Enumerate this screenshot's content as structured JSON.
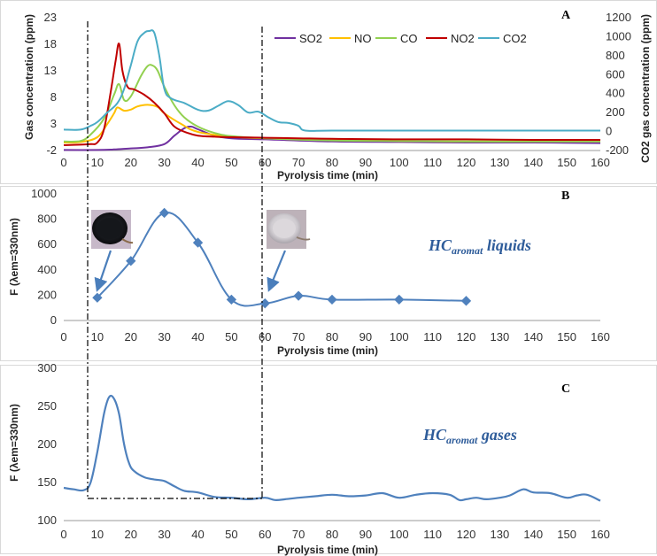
{
  "chart_data": [
    {
      "panel": "A",
      "type": "line",
      "xlabel": "Pyrolysis time (min)",
      "ylabel": "Gas concentration (ppm)",
      "y2label": "CO2 gas concentration (ppm)",
      "xlim": [
        0,
        160
      ],
      "ylim": [
        -2,
        23
      ],
      "y2lim": [
        -200,
        1200
      ],
      "xticks": [
        0,
        10,
        20,
        30,
        40,
        50,
        60,
        70,
        80,
        90,
        100,
        110,
        120,
        130,
        140,
        150,
        160
      ],
      "yticks": [
        -2,
        3,
        8,
        13,
        18,
        23
      ],
      "y2ticks": [
        -200,
        0,
        200,
        400,
        600,
        800,
        1000,
        1200
      ],
      "legend_position": "top",
      "series": [
        {
          "name": "SO2",
          "color": "#7030a0",
          "axis": "left",
          "x": [
            0,
            10,
            15,
            20,
            25,
            30,
            33,
            36,
            38,
            40,
            45,
            50,
            60,
            80,
            100,
            120,
            140,
            160
          ],
          "y": [
            -1.9,
            -1.9,
            -1.8,
            -1.6,
            -1.4,
            -0.8,
            0.8,
            2.2,
            2.5,
            2.0,
            0.8,
            0.3,
            0.1,
            -0.3,
            -0.4,
            -0.5,
            -0.5,
            -0.6
          ]
        },
        {
          "name": "NO",
          "color": "#ffc000",
          "axis": "left",
          "x": [
            0,
            5,
            10,
            13,
            15,
            16,
            18,
            20,
            22,
            25,
            28,
            30,
            35,
            40,
            50,
            60,
            70,
            80,
            100,
            120,
            140,
            160
          ],
          "y": [
            -0.5,
            -0.4,
            0.5,
            3.0,
            5.0,
            6.1,
            5.5,
            5.7,
            6.3,
            6.6,
            6.2,
            5.0,
            3.0,
            1.5,
            0.6,
            0.3,
            0.1,
            0,
            -0.2,
            -0.3,
            -0.3,
            -0.3
          ]
        },
        {
          "name": "CO",
          "color": "#92d050",
          "axis": "left",
          "x": [
            0,
            5,
            8,
            12,
            15,
            16.5,
            18,
            20,
            23,
            25,
            26.5,
            28,
            30,
            33,
            36,
            40,
            45,
            50,
            60,
            80,
            100,
            120,
            140,
            160
          ],
          "y": [
            -0.3,
            -0.2,
            1.0,
            4.0,
            8.5,
            10.5,
            7.5,
            8.2,
            12.0,
            13.9,
            14.0,
            13.0,
            10.0,
            6.5,
            4.2,
            2.5,
            1.3,
            0.7,
            0.3,
            -0.1,
            -0.2,
            -0.3,
            -0.3,
            -0.3
          ]
        },
        {
          "name": "NO2",
          "color": "#c00000",
          "axis": "left",
          "x": [
            0,
            5,
            8,
            10,
            12,
            14,
            15.5,
            16.5,
            17.5,
            19,
            21,
            24,
            27,
            30,
            33,
            37,
            40,
            45,
            50,
            60,
            70,
            80,
            100,
            120,
            140,
            160
          ],
          "y": [
            -1.0,
            -0.9,
            -0.8,
            -0.5,
            2.0,
            9.0,
            15.0,
            18.1,
            13.0,
            10.0,
            9.5,
            8.5,
            7.0,
            5.0,
            2.5,
            1.3,
            0.8,
            0.6,
            0.5,
            0.4,
            0.3,
            0.2,
            0.1,
            0.1,
            0.0,
            0.0
          ]
        },
        {
          "name": "CO2",
          "color": "#4bacc6",
          "axis": "right",
          "x": [
            0,
            5,
            8,
            10,
            13,
            16,
            18,
            20,
            22,
            24,
            25.5,
            27,
            28.5,
            30,
            32,
            36,
            40,
            43,
            46,
            49,
            52,
            55,
            58,
            61,
            64,
            67,
            70,
            72,
            80,
            100,
            120,
            140,
            160
          ],
          "y": [
            20,
            20,
            60,
            100,
            200,
            300,
            450,
            700,
            950,
            1040,
            1060,
            1040,
            800,
            450,
            350,
            300,
            230,
            220,
            270,
            320,
            280,
            200,
            210,
            150,
            100,
            90,
            60,
            10,
            10,
            10,
            10,
            10,
            10
          ]
        }
      ]
    },
    {
      "panel": "B",
      "type": "line",
      "xlabel": "Pyrolysis time (min)",
      "ylabel": "F (λem=330nm)",
      "xlim": [
        0,
        160
      ],
      "ylim": [
        0,
        1000
      ],
      "xticks": [
        0,
        10,
        20,
        30,
        40,
        50,
        60,
        70,
        80,
        90,
        100,
        110,
        120,
        130,
        140,
        150,
        160
      ],
      "yticks": [
        0,
        200,
        400,
        600,
        800,
        1000
      ],
      "annotation": {
        "main": "HC",
        "sub": "aromat",
        "rest": " liquids"
      },
      "series": [
        {
          "color": "#4f81bd",
          "x": [
            10,
            20,
            30,
            40,
            50,
            60,
            70,
            80,
            100,
            120
          ],
          "y": [
            180,
            470,
            850,
            615,
            165,
            135,
            195,
            165,
            165,
            155
          ]
        }
      ]
    },
    {
      "panel": "C",
      "type": "line",
      "xlabel": "Pyrolysis time (min)",
      "ylabel": "F (λem=330nm)",
      "xlim": [
        0,
        160
      ],
      "ylim": [
        100,
        300
      ],
      "xticks": [
        0,
        10,
        20,
        30,
        40,
        50,
        60,
        70,
        80,
        90,
        100,
        110,
        120,
        130,
        140,
        150,
        160
      ],
      "yticks": [
        100,
        150,
        200,
        250,
        300
      ],
      "annotation": {
        "main": "HC",
        "sub": "aromat",
        "rest": " gases"
      },
      "series": [
        {
          "color": "#4f81bd",
          "x": [
            0,
            3,
            6,
            8,
            10,
            12,
            13.5,
            15,
            16.5,
            18,
            19.5,
            21,
            24,
            27,
            30,
            33,
            36,
            40,
            45,
            50,
            55,
            60,
            63,
            66,
            70,
            75,
            80,
            85,
            90,
            95,
            100,
            105,
            110,
            115,
            118,
            120,
            123,
            126,
            130,
            133,
            137,
            140,
            145,
            150,
            153,
            156,
            160
          ],
          "y": [
            143,
            141,
            140,
            150,
            190,
            240,
            262,
            260,
            240,
            200,
            175,
            165,
            157,
            154,
            152,
            145,
            139,
            137,
            131,
            130,
            128,
            130,
            127,
            128,
            130,
            132,
            134,
            132,
            133,
            136,
            130,
            134,
            136,
            134,
            127,
            128,
            130,
            128,
            130,
            133,
            141,
            137,
            136,
            130,
            133,
            134,
            126
          ]
        }
      ]
    }
  ],
  "panels": {
    "a": {
      "letter": "A"
    },
    "b": {
      "letter": "B"
    },
    "c": {
      "letter": "C"
    }
  },
  "colors": {
    "frame": "#d9d9d9",
    "axis": "#9a9a9a",
    "dashed_guide": "#000000"
  },
  "images": {
    "before": {
      "icon": "dark-crucible-photo"
    },
    "after": {
      "icon": "light-crucible-photo"
    }
  }
}
